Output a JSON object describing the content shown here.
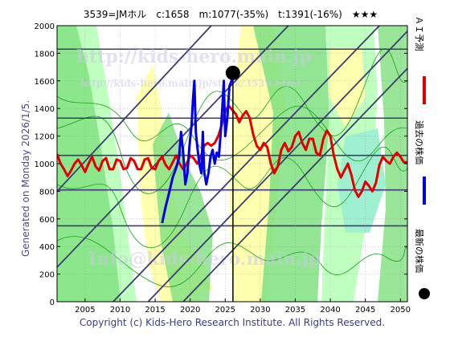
{
  "header": {
    "title": "3539=JMホル　c:1658　m:1077(-35%)　t:1391(-16%)　★★★"
  },
  "side_text": "Generated on Monday 2026/1/5.",
  "copyright": "Copyright (c) Kids-Hero Research Institute. All Rights Reserved.",
  "watermarks": [
    "http://kids-hero.main.jp",
    "http://kids-hero.main.jp/stock/3539.html",
    "Info@kids-hero.main.jp"
  ],
  "legend": [
    {
      "label": "ＡＩ予測",
      "color": "#e00000",
      "kind": "line"
    },
    {
      "label": "過去の株価",
      "color": "#0000e0",
      "kind": "line"
    },
    {
      "label": "最新の株価",
      "color": "#000000",
      "kind": "dot"
    }
  ],
  "colors": {
    "band_green": "#7fe07f",
    "band_light_green": "#bfffbf",
    "band_yellow": "#ffffb0",
    "band_aqua": "#9ff0d0",
    "grid": "#3c3c6e",
    "ai": "#e00000",
    "price": "#0000e0"
  },
  "chart_data": {
    "type": "line",
    "title": "3539=JMホル　c:1658　m:1077(-35%)　t:1391(-16%)　★★★",
    "xlim": [
      2001,
      2051
    ],
    "ylim": [
      0,
      2000
    ],
    "x_ticks": [
      2005,
      2010,
      2015,
      2020,
      2025,
      2030,
      2035,
      2040,
      2045,
      2050
    ],
    "y_ticks": [
      0,
      200,
      400,
      600,
      800,
      1000,
      1200,
      1400,
      1600,
      1800,
      2000
    ],
    "horizontal_levels": [
      550,
      810,
      1060,
      1330,
      1830
    ],
    "current": {
      "x": 2026.1,
      "y": 1658
    },
    "series": [
      {
        "name": "過去の株価",
        "points": [
          [
            2016.0,
            570
          ],
          [
            2016.5,
            690
          ],
          [
            2017.0,
            790
          ],
          [
            2017.5,
            900
          ],
          [
            2018.0,
            970
          ],
          [
            2018.4,
            1040
          ],
          [
            2018.7,
            1230
          ],
          [
            2019.0,
            1080
          ],
          [
            2019.3,
            850
          ],
          [
            2019.6,
            930
          ],
          [
            2019.9,
            1130
          ],
          [
            2020.2,
            1280
          ],
          [
            2020.4,
            1470
          ],
          [
            2020.6,
            1600
          ],
          [
            2020.8,
            1230
          ],
          [
            2021.0,
            1130
          ],
          [
            2021.3,
            1000
          ],
          [
            2021.6,
            930
          ],
          [
            2021.8,
            1230
          ],
          [
            2022.0,
            940
          ],
          [
            2022.3,
            850
          ],
          [
            2022.6,
            930
          ],
          [
            2022.9,
            1050
          ],
          [
            2023.2,
            1100
          ],
          [
            2023.5,
            1000
          ],
          [
            2023.8,
            1080
          ],
          [
            2024.1,
            1050
          ],
          [
            2024.4,
            1250
          ],
          [
            2024.6,
            1420
          ],
          [
            2024.8,
            1600
          ],
          [
            2025.0,
            1200
          ],
          [
            2025.3,
            1330
          ],
          [
            2025.6,
            1560
          ],
          [
            2025.9,
            1600
          ],
          [
            2026.1,
            1658
          ]
        ]
      },
      {
        "name": "ＡＩ予測",
        "points": [
          [
            2001.0,
            1070
          ],
          [
            2001.5,
            1000
          ],
          [
            2002.0,
            960
          ],
          [
            2002.5,
            910
          ],
          [
            2003.0,
            950
          ],
          [
            2003.5,
            1000
          ],
          [
            2004.0,
            1030
          ],
          [
            2004.5,
            990
          ],
          [
            2005.0,
            940
          ],
          [
            2005.5,
            1000
          ],
          [
            2006.0,
            1050
          ],
          [
            2006.5,
            980
          ],
          [
            2007.0,
            950
          ],
          [
            2007.5,
            1020
          ],
          [
            2008.0,
            1040
          ],
          [
            2008.5,
            960
          ],
          [
            2009.0,
            960
          ],
          [
            2009.5,
            1030
          ],
          [
            2010.0,
            1020
          ],
          [
            2010.5,
            960
          ],
          [
            2011.0,
            970
          ],
          [
            2011.5,
            1040
          ],
          [
            2012.0,
            1020
          ],
          [
            2012.5,
            960
          ],
          [
            2013.0,
            960
          ],
          [
            2013.5,
            1030
          ],
          [
            2014.0,
            1040
          ],
          [
            2014.5,
            970
          ],
          [
            2015.0,
            960
          ],
          [
            2015.5,
            1020
          ],
          [
            2016.0,
            1050
          ],
          [
            2016.5,
            990
          ],
          [
            2017.0,
            960
          ],
          [
            2017.5,
            1010
          ],
          [
            2018.0,
            1060
          ],
          [
            2018.5,
            1000
          ],
          [
            2019.0,
            960
          ],
          [
            2019.5,
            1000
          ],
          [
            2020.0,
            1060
          ],
          [
            2020.5,
            1040
          ],
          [
            2021.0,
            1000
          ],
          [
            2021.5,
            1050
          ],
          [
            2022.0,
            1130
          ],
          [
            2022.5,
            1150
          ],
          [
            2023.0,
            1130
          ],
          [
            2023.5,
            1150
          ],
          [
            2024.0,
            1200
          ],
          [
            2024.5,
            1280
          ],
          [
            2025.0,
            1380
          ],
          [
            2025.5,
            1420
          ],
          [
            2026.0,
            1390
          ],
          [
            2026.5,
            1360
          ],
          [
            2027.0,
            1300
          ],
          [
            2027.5,
            1350
          ],
          [
            2028.0,
            1380
          ],
          [
            2028.5,
            1330
          ],
          [
            2029.0,
            1210
          ],
          [
            2029.5,
            1130
          ],
          [
            2030.0,
            1100
          ],
          [
            2030.5,
            1150
          ],
          [
            2031.0,
            1120
          ],
          [
            2031.5,
            1000
          ],
          [
            2032.0,
            930
          ],
          [
            2032.5,
            980
          ],
          [
            2033.0,
            1100
          ],
          [
            2033.5,
            1150
          ],
          [
            2034.0,
            1090
          ],
          [
            2034.5,
            1120
          ],
          [
            2035.0,
            1200
          ],
          [
            2035.5,
            1230
          ],
          [
            2036.0,
            1150
          ],
          [
            2036.5,
            1100
          ],
          [
            2037.0,
            1180
          ],
          [
            2037.5,
            1180
          ],
          [
            2038.0,
            1080
          ],
          [
            2038.5,
            1060
          ],
          [
            2039.0,
            1180
          ],
          [
            2039.5,
            1240
          ],
          [
            2040.0,
            1200
          ],
          [
            2040.5,
            1060
          ],
          [
            2041.0,
            960
          ],
          [
            2041.5,
            900
          ],
          [
            2042.0,
            950
          ],
          [
            2042.5,
            1000
          ],
          [
            2043.0,
            920
          ],
          [
            2043.5,
            810
          ],
          [
            2044.0,
            760
          ],
          [
            2044.5,
            800
          ],
          [
            2045.0,
            870
          ],
          [
            2045.5,
            840
          ],
          [
            2046.0,
            800
          ],
          [
            2046.5,
            860
          ],
          [
            2047.0,
            990
          ],
          [
            2047.5,
            1050
          ],
          [
            2048.0,
            1020
          ],
          [
            2048.5,
            1000
          ],
          [
            2049.0,
            1050
          ],
          [
            2049.5,
            1080
          ],
          [
            2050.0,
            1050
          ],
          [
            2050.5,
            1010
          ],
          [
            2051.0,
            1010
          ]
        ]
      }
    ],
    "trend_lines": [
      [
        [
          2001,
          250
        ],
        [
          2034,
          2000
        ]
      ],
      [
        [
          2001,
          800
        ],
        [
          2023,
          2000
        ]
      ],
      [
        [
          2009,
          0
        ],
        [
          2047,
          2000
        ]
      ],
      [
        [
          2014,
          0
        ],
        [
          2051,
          1960
        ]
      ],
      [
        [
          2019,
          0
        ],
        [
          2051,
          1690
        ]
      ]
    ]
  }
}
